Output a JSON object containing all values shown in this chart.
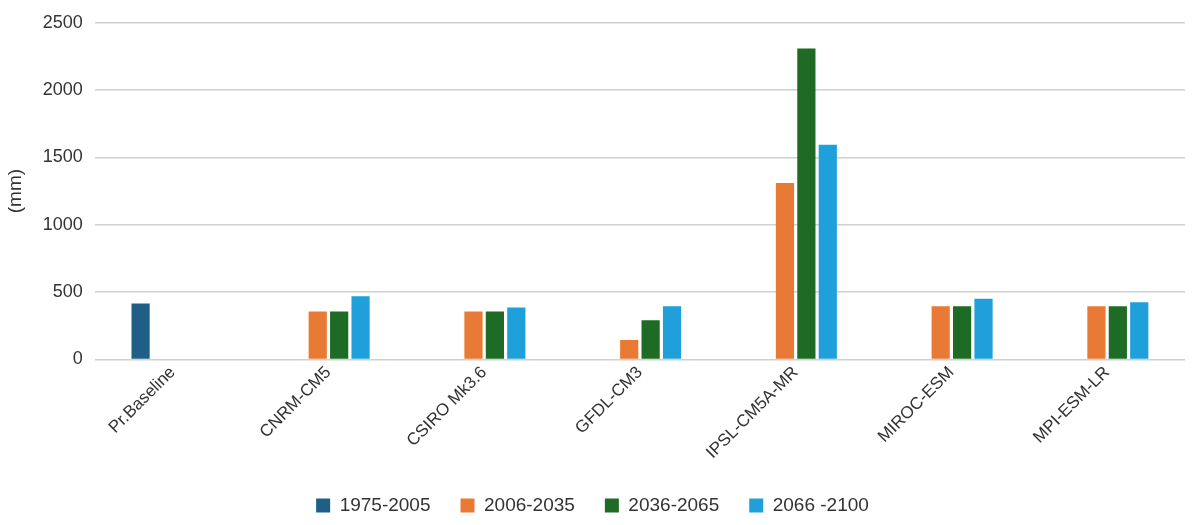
{
  "chart_data": {
    "type": "bar",
    "ylabel": "(mm)",
    "categories": [
      "Pr.Baseline",
      "CNRM-CM5",
      "CSIRO Mk3.6",
      "GFDL-CM3",
      "IPSL-CM5A-MR",
      "MIROC-ESM",
      "MPI-ESM-LR"
    ],
    "series": [
      {
        "name": "1975-2005",
        "color": "#1f5f86",
        "values": [
          415,
          null,
          null,
          null,
          null,
          null,
          null
        ]
      },
      {
        "name": "2006-2035",
        "color": "#e97a35",
        "values": [
          null,
          355,
          355,
          145,
          1310,
          395,
          395
        ]
      },
      {
        "name": "2036-2065",
        "color": "#1e6b25",
        "values": [
          null,
          355,
          355,
          290,
          2310,
          395,
          395
        ]
      },
      {
        "name": "2066 -2100",
        "color": "#20a0da",
        "values": [
          null,
          470,
          385,
          395,
          1595,
          450,
          425
        ]
      }
    ],
    "ylim": [
      0,
      2500
    ],
    "yticks": [
      0,
      500,
      1000,
      1500,
      2000,
      2500
    ],
    "grid": "y",
    "legend": "bottom"
  }
}
